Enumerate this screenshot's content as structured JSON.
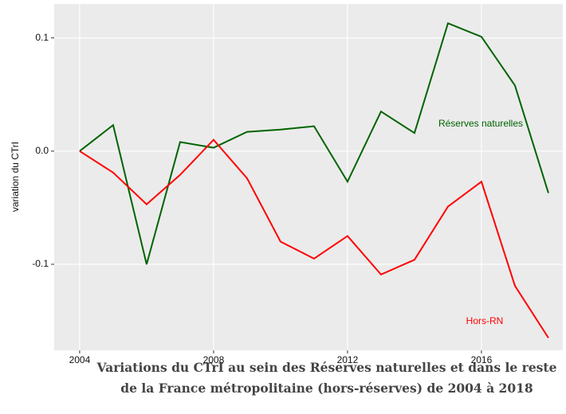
{
  "chart_data": {
    "type": "line",
    "ylabel": "variation du CTrI",
    "caption": [
      "Variations du CTrI au sein des Réserves naturelles et dans le reste",
      "de la France métropolitaine (hors-réserves) de 2004 à 2018"
    ],
    "x": [
      2004,
      2005,
      2006,
      2007,
      2008,
      2009,
      2010,
      2011,
      2012,
      2013,
      2014,
      2015,
      2016,
      2017,
      2018
    ],
    "series": [
      {
        "name": "Réserves naturelles",
        "color": "#006400",
        "values": [
          0,
          0.023,
          -0.1,
          0.008,
          0.003,
          0.017,
          0.019,
          0.022,
          -0.027,
          0.035,
          0.016,
          0.113,
          0.101,
          0.058,
          -0.037
        ]
      },
      {
        "name": "Hors-RN",
        "color": "#ff0000",
        "values": [
          0,
          -0.019,
          -0.047,
          -0.021,
          0.01,
          -0.024,
          -0.08,
          -0.095,
          -0.075,
          -0.109,
          -0.096,
          -0.049,
          -0.027,
          -0.119,
          -0.165
        ]
      }
    ],
    "xlim": [
      2003.24,
      2018.43
    ],
    "ylim": [
      -0.176,
      0.13
    ],
    "xticks": [
      2004,
      2008,
      2012,
      2016
    ],
    "yticks": [
      0.1,
      {
        "value": 0,
        "label": "0.0"
      },
      -0.1
    ],
    "grid": true
  }
}
